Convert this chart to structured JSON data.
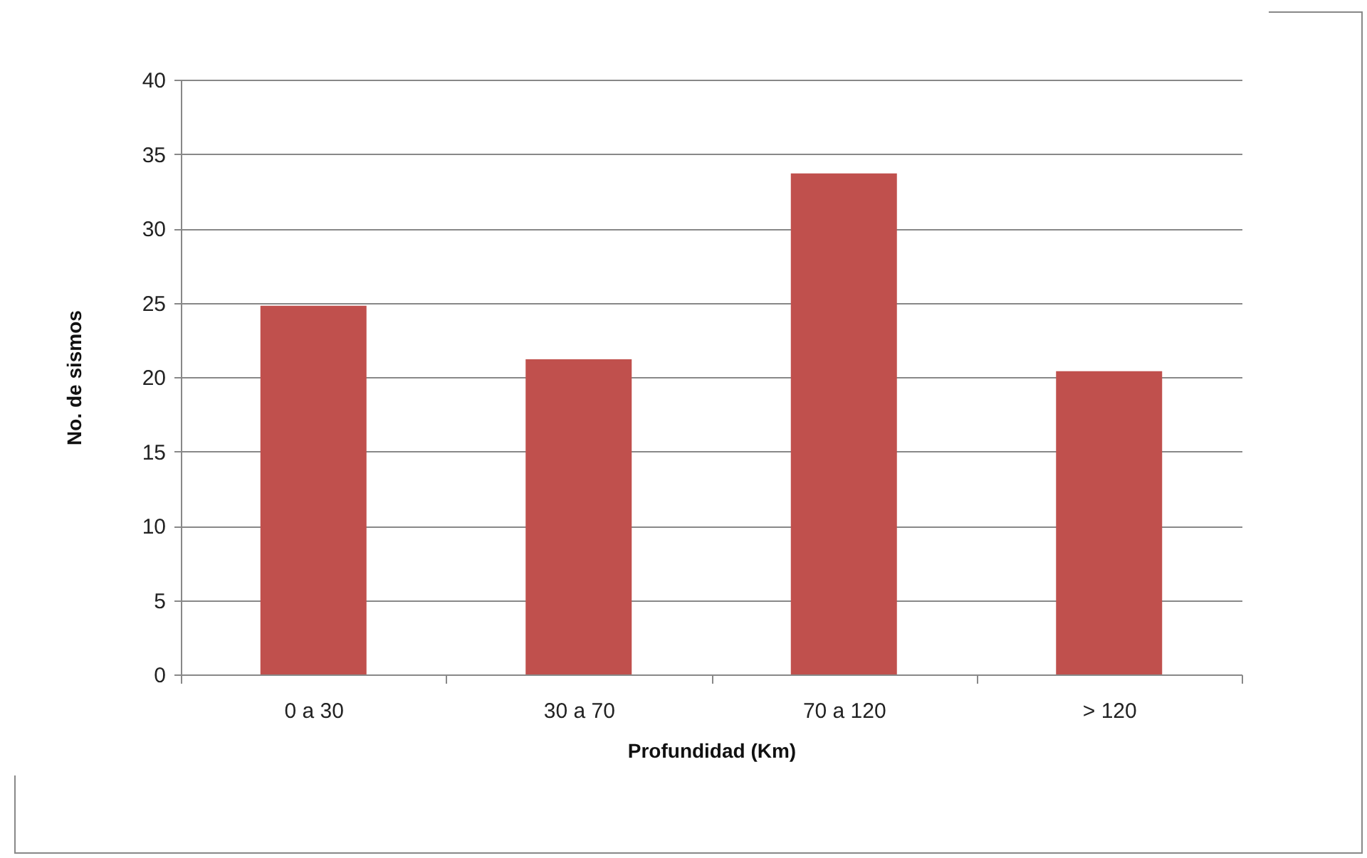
{
  "chart_data": {
    "type": "bar",
    "xlabel": "Profundidad (Km)",
    "ylabel": "No. de sismos",
    "categories": [
      "0 a 30",
      "30 a 70",
      "70 a 120",
      "> 120"
    ],
    "values": [
      24.8,
      21.2,
      33.7,
      20.4
    ],
    "color": "#c0504d",
    "ylim": [
      0,
      40
    ],
    "yticks": [
      0,
      5,
      10,
      15,
      20,
      25,
      30,
      35,
      40
    ],
    "grid": "y"
  }
}
